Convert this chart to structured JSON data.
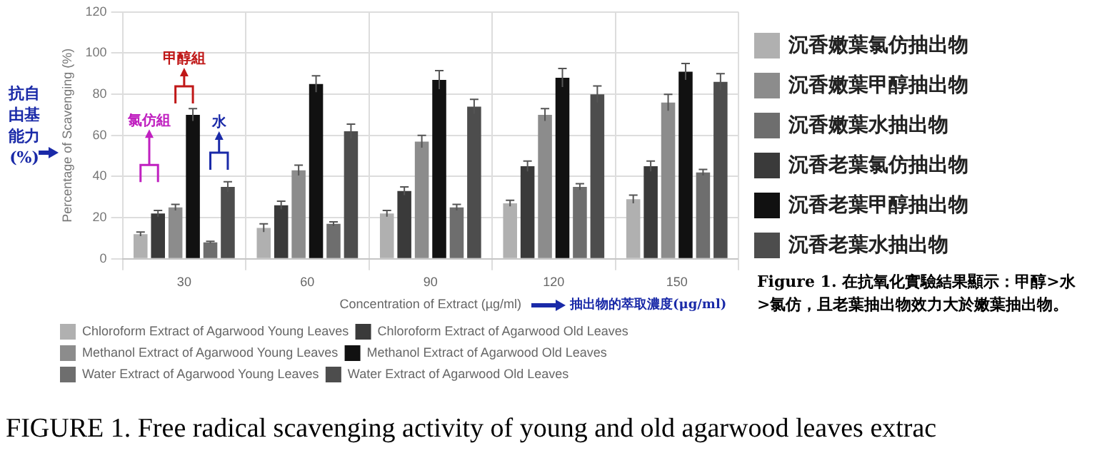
{
  "chart_data": {
    "type": "bar",
    "title": "FIGURE 1. Free radical scavenging activity of young and old agarwood leaves extrac",
    "xlabel": "Concentration of Extract (µg/ml)",
    "ylabel": "Percentage of Scavenging (%)",
    "categories": [
      "30",
      "60",
      "90",
      "120",
      "150"
    ],
    "series": [
      {
        "name": "Chloroform Extract of Agarwood Young Leaves",
        "color": "#b0b0b0",
        "values": [
          12,
          15,
          22,
          27,
          29
        ],
        "errors": [
          1,
          2,
          1.5,
          1.5,
          2
        ]
      },
      {
        "name": "Chloroform Extract of Agarwood Old Leaves",
        "color": "#3a3a3a",
        "values": [
          22,
          26,
          33,
          45,
          45
        ],
        "errors": [
          1.5,
          2,
          2,
          2.5,
          2.5
        ]
      },
      {
        "name": "Methanol Extract of Agarwood Young Leaves",
        "color": "#8c8c8c",
        "values": [
          25,
          43,
          57,
          70,
          76
        ],
        "errors": [
          1.5,
          2.5,
          3,
          3,
          4
        ]
      },
      {
        "name": "Methanol Extract of Agarwood Old Leaves",
        "color": "#111111",
        "values": [
          70,
          85,
          87,
          88,
          91
        ],
        "errors": [
          3,
          4,
          4.5,
          4.5,
          4
        ]
      },
      {
        "name": "Water Extract of Agarwood Young Leaves",
        "color": "#6e6e6e",
        "values": [
          8,
          17,
          25,
          35,
          42
        ],
        "errors": [
          0.5,
          1,
          1.5,
          1.5,
          1.5
        ]
      },
      {
        "name": "Water Extract of Agarwood Old Leaves",
        "color": "#4d4d4d",
        "values": [
          35,
          62,
          74,
          80,
          86
        ],
        "errors": [
          2.5,
          3.5,
          3.5,
          4,
          4
        ]
      }
    ],
    "ylim": [
      0,
      120
    ],
    "yticks": [
      0,
      20,
      40,
      60,
      80,
      100,
      120
    ],
    "grid": true,
    "legend": "bottom",
    "annotations": [
      "抗自由基能力(%)",
      "抽出物的萃取濃度(μg/ml)",
      "Figure 1. 在抗氧化實驗結果顯示：甲醇>水>氯仿，且老葉抽出物效力大於嫩葉抽出物。",
      "沉香嫩葉氯仿抽出物",
      "沉香老葉氯仿抽出物",
      "沉香嫩葉甲醇抽出物",
      "沉香老葉甲醇抽出物",
      "沉香嫩葉水抽出物",
      "沉香老葉水抽出物",
      "氯仿組",
      "甲醇組",
      "水"
    ]
  }
}
